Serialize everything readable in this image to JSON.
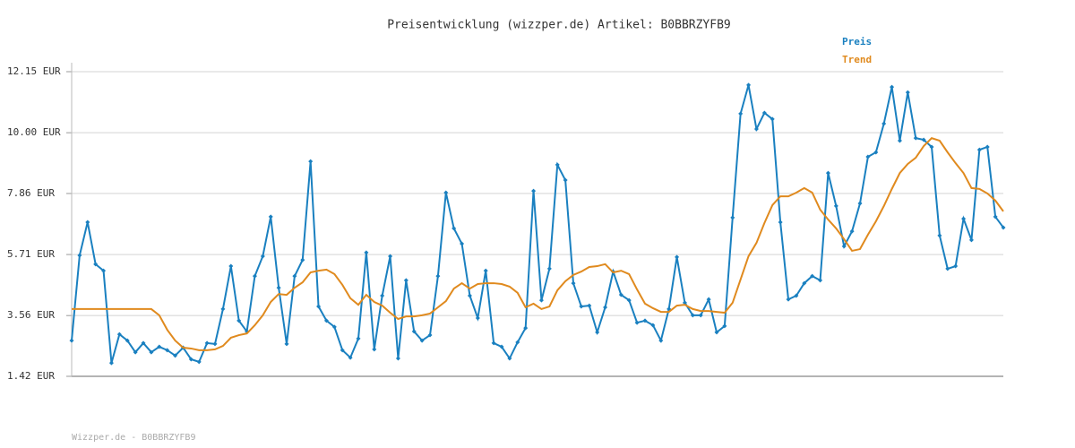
{
  "chart_data": {
    "type": "line",
    "title": "Preisentwicklung (wizzper.de) Artikel: B0BBRZYFB9",
    "footer": "Wizzper.de - B0BBRZYFB9",
    "ylim": [
      1.42,
      12.15
    ],
    "yticks": [
      {
        "value": 1.42,
        "label": "1.42 EUR"
      },
      {
        "value": 3.56,
        "label": "3.56 EUR"
      },
      {
        "value": 5.71,
        "label": "5.71 EUR"
      },
      {
        "value": 7.86,
        "label": "7.86 EUR"
      },
      {
        "value": 10.0,
        "label": "10.00 EUR"
      },
      {
        "value": 12.15,
        "label": "12.15 EUR"
      }
    ],
    "grid": true,
    "legend": "top-right",
    "series": [
      {
        "name": "Preis",
        "color": "#1a80c0",
        "markers": true,
        "values": [
          2.68,
          5.68,
          6.85,
          5.37,
          5.14,
          1.89,
          2.9,
          2.68,
          2.27,
          2.59,
          2.27,
          2.46,
          2.34,
          2.15,
          2.43,
          2.02,
          1.93,
          2.59,
          2.56,
          3.79,
          5.3,
          3.38,
          3.0,
          4.95,
          5.65,
          7.04,
          4.54,
          2.56,
          4.95,
          5.52,
          8.99,
          3.88,
          3.38,
          3.16,
          2.34,
          2.08,
          2.75,
          5.78,
          2.37,
          4.26,
          5.65,
          2.05,
          4.8,
          3.0,
          2.68,
          2.87,
          4.95,
          7.89,
          6.63,
          6.09,
          4.26,
          3.47,
          5.14,
          2.59,
          2.46,
          2.05,
          2.62,
          3.12,
          7.95,
          4.1,
          5.21,
          8.87,
          8.33,
          4.7,
          3.88,
          3.91,
          2.97,
          3.85,
          5.11,
          4.29,
          4.1,
          3.31,
          3.38,
          3.22,
          2.68,
          3.79,
          5.62,
          4.01,
          3.57,
          3.57,
          4.13,
          2.97,
          3.19,
          7.01,
          10.67,
          11.68,
          10.13,
          10.7,
          10.48,
          6.85,
          4.13,
          4.26,
          4.7,
          4.95,
          4.8,
          8.58,
          7.42,
          6.0,
          6.53,
          7.51,
          9.15,
          9.31,
          10.32,
          11.61,
          9.72,
          11.42,
          9.81,
          9.75,
          9.5,
          6.38,
          5.21,
          5.3,
          6.97,
          6.22,
          9.4,
          9.5,
          7.04,
          6.66
        ]
      },
      {
        "name": "Trend",
        "color": "#e08a1e",
        "markers": false,
        "values": [
          3.79,
          3.79,
          3.79,
          3.79,
          3.79,
          3.79,
          3.79,
          3.79,
          3.79,
          3.79,
          3.79,
          3.57,
          3.06,
          2.68,
          2.43,
          2.4,
          2.34,
          2.34,
          2.37,
          2.49,
          2.78,
          2.87,
          2.93,
          3.22,
          3.57,
          4.04,
          4.32,
          4.29,
          4.54,
          4.73,
          5.08,
          5.14,
          5.18,
          5.02,
          4.64,
          4.17,
          3.94,
          4.29,
          4.04,
          3.91,
          3.66,
          3.44,
          3.53,
          3.53,
          3.57,
          3.63,
          3.85,
          4.07,
          4.51,
          4.7,
          4.51,
          4.67,
          4.7,
          4.7,
          4.67,
          4.58,
          4.36,
          3.85,
          3.98,
          3.79,
          3.88,
          4.45,
          4.77,
          4.99,
          5.11,
          5.27,
          5.3,
          5.37,
          5.08,
          5.14,
          5.02,
          4.48,
          3.98,
          3.82,
          3.69,
          3.69,
          3.91,
          3.94,
          3.79,
          3.72,
          3.72,
          3.69,
          3.66,
          4.01,
          4.83,
          5.65,
          6.12,
          6.82,
          7.45,
          7.76,
          7.76,
          7.89,
          8.05,
          7.89,
          7.29,
          6.94,
          6.63,
          6.25,
          5.84,
          5.9,
          6.41,
          6.88,
          7.42,
          8.02,
          8.58,
          8.9,
          9.12,
          9.53,
          9.81,
          9.72,
          9.31,
          8.93,
          8.58,
          8.05,
          8.02,
          7.86,
          7.61,
          7.23
        ]
      }
    ]
  }
}
